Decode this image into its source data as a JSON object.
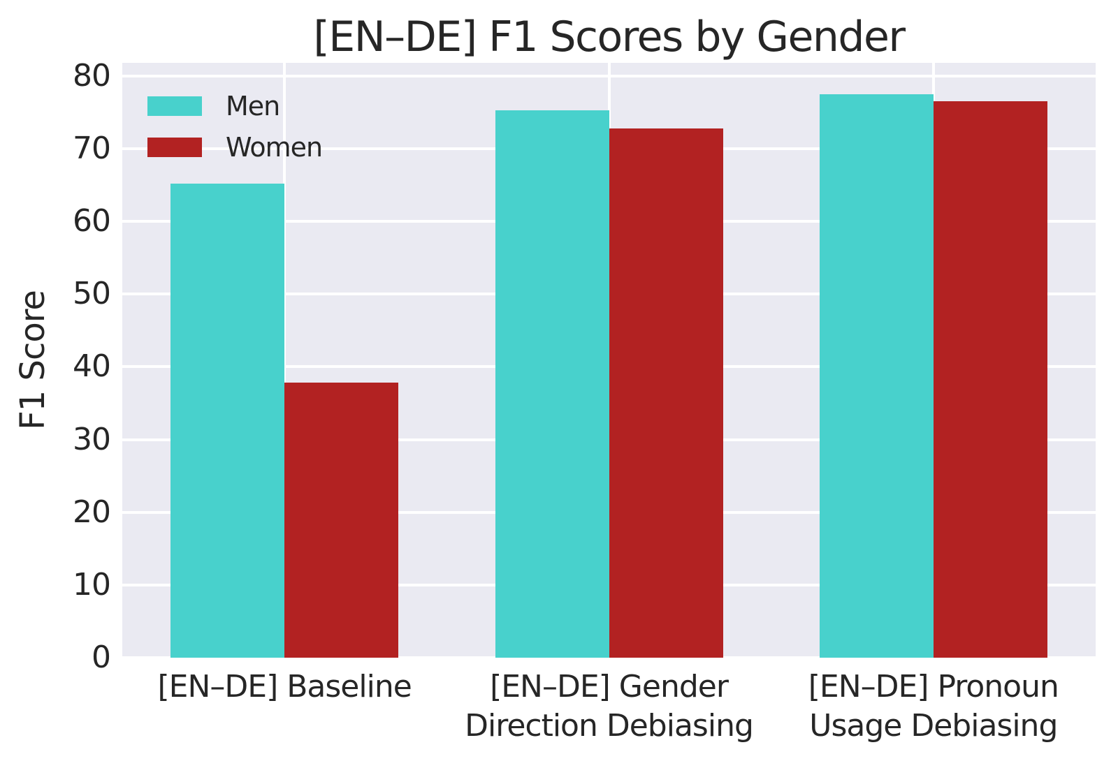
{
  "chart_data": {
    "type": "bar",
    "title": "[EN–DE] F1 Scores by Gender",
    "ylabel": "F1 Score",
    "xlabel": "",
    "categories": [
      "[EN–DE] Baseline",
      "[EN–DE] Gender\nDirection Debiasing",
      "[EN–DE] Pronoun\nUsage Debiasing"
    ],
    "series": [
      {
        "name": "Men",
        "color": "#48D1CC",
        "values": [
          65.2,
          75.3,
          77.5
        ]
      },
      {
        "name": "Women",
        "color": "#B22222",
        "values": [
          37.8,
          72.8,
          76.5
        ]
      }
    ],
    "yticks": [
      0,
      10,
      20,
      30,
      40,
      50,
      60,
      70,
      80
    ],
    "ylim": [
      0,
      81.8
    ],
    "grid": true,
    "legend_position": "upper left",
    "colors": {
      "plot_background": "#EAEAF2",
      "grid": "#FFFFFF",
      "text": "#262626",
      "page_background": "#FFFFFF"
    }
  }
}
